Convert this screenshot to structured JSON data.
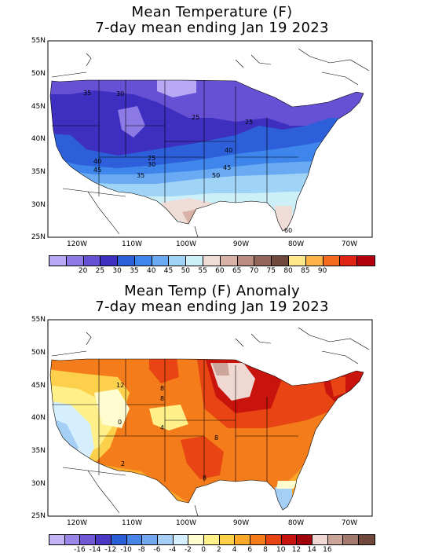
{
  "top": {
    "title_line1": "Mean Temperature (F)",
    "title_line2": "7-day mean ending Jan 19 2023",
    "lat_labels": [
      "55N",
      "50N",
      "45N",
      "40N",
      "35N",
      "30N",
      "25N"
    ],
    "lon_labels": [
      "120W",
      "110W",
      "100W",
      "90W",
      "80W",
      "70W"
    ],
    "colorbar": {
      "colors": [
        "#b9a9f5",
        "#8d7ae6",
        "#6650d4",
        "#3e2fc0",
        "#2c5fd9",
        "#3f86ec",
        "#6aaaf3",
        "#9fd4f7",
        "#cdeff8",
        "#f0dcd6",
        "#d8b2a6",
        "#b98c7f",
        "#946659",
        "#70493c",
        "#ffe88a",
        "#fdb24a",
        "#f46a1c",
        "#e02414",
        "#b3000c"
      ],
      "labels": [
        "20",
        "25",
        "30",
        "35",
        "40",
        "45",
        "50",
        "55",
        "60",
        "65",
        "70",
        "75",
        "80",
        "85",
        "90"
      ]
    },
    "contour_labels": [
      "35",
      "30",
      "25",
      "25",
      "40",
      "25",
      "30",
      "40",
      "45",
      "45",
      "35",
      "50",
      "60"
    ]
  },
  "bottom": {
    "title_line1": "Mean Temp (F) Anomaly",
    "title_line2": "7-day mean ending Jan 19 2023",
    "lat_labels": [
      "55N",
      "50N",
      "45N",
      "40N",
      "35N",
      "30N",
      "25N"
    ],
    "lon_labels": [
      "120W",
      "110W",
      "100W",
      "90W",
      "80W",
      "70W"
    ],
    "colorbar": {
      "colors": [
        "#c4b3f5",
        "#9a85e8",
        "#7159d6",
        "#4b39c4",
        "#2b5fd6",
        "#4785e6",
        "#72a8ef",
        "#a5cff6",
        "#d6efff",
        "#fffcd0",
        "#fff08a",
        "#fcd04a",
        "#fca82a",
        "#f47c1a",
        "#e84414",
        "#c8140c",
        "#a0040a",
        "#f0d8d2",
        "#cca59a",
        "#a57a6e",
        "#70493c"
      ],
      "labels": [
        "-16",
        "-14",
        "-12",
        "-10",
        "-8",
        "-6",
        "-4",
        "-2",
        "0",
        "2",
        "4",
        "6",
        "8",
        "10",
        "12",
        "14",
        "16"
      ]
    },
    "contour_labels": [
      "12",
      "8",
      "8",
      "4",
      "0",
      "2",
      "8",
      "8"
    ]
  }
}
